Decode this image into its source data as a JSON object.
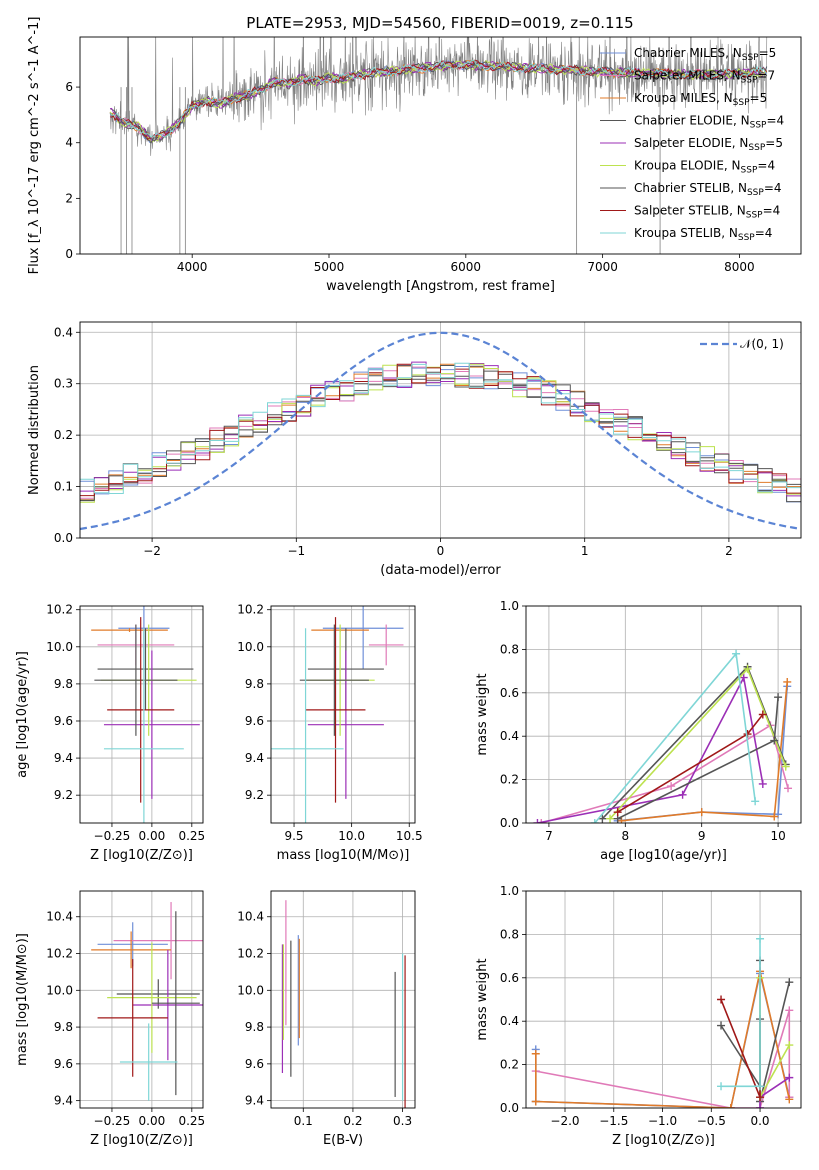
{
  "figure": {
    "title": "PLATE=2953, MJD=54560, FIBERID=0019, z=0.115"
  },
  "colors": {
    "Chabrier MILES": "#6f8fd8",
    "Salpeter MILES": "#e07ab8",
    "Kroupa MILES": "#e07b2a",
    "Chabrier ELODIE": "#555555",
    "Salpeter ELODIE": "#9b2fb6",
    "Kroupa ELODIE": "#bde24f",
    "Chabrier STELIB": "#555555",
    "Salpeter STELIB": "#a01818",
    "Kroupa STELIB": "#7fd6d6",
    "data": "#808080",
    "grid": "#b0b0b0",
    "normal": "#5b84d4"
  },
  "chart_data": [
    {
      "id": "spectrum",
      "type": "line",
      "title": "PLATE=2953, MJD=54560, FIBERID=0019, z=0.115",
      "xlabel": "wavelength [Angstrom, rest frame]",
      "ylabel": "Flux [f_λ 10^-17 erg cm^-2 s^-1 A^-1]",
      "xlim": [
        3180,
        8450
      ],
      "ylim": [
        0,
        7.8
      ],
      "xticks": [
        4000,
        5000,
        6000,
        7000,
        8000
      ],
      "yticks": [
        0,
        2,
        4,
        6
      ],
      "grid": false,
      "legend_position": "top-right",
      "legend": [
        {
          "text": "Chabrier MILES, N",
          "sub": "SSP",
          "tail": "=5"
        },
        {
          "text": "Salpeter MILES, N",
          "sub": "SSP",
          "tail": "=7"
        },
        {
          "text": "Kroupa MILES, N",
          "sub": "SSP",
          "tail": "=5"
        },
        {
          "text": "Chabrier ELODIE, N",
          "sub": "SSP",
          "tail": "=4"
        },
        {
          "text": "Salpeter ELODIE, N",
          "sub": "SSP",
          "tail": "=5"
        },
        {
          "text": "Kroupa ELODIE, N",
          "sub": "SSP",
          "tail": "=4"
        },
        {
          "text": "Chabrier STELIB, N",
          "sub": "SSP",
          "tail": "=4"
        },
        {
          "text": "Salpeter STELIB, N",
          "sub": "SSP",
          "tail": "=4"
        },
        {
          "text": "Kroupa STELIB, N",
          "sub": "SSP",
          "tail": "=4"
        }
      ],
      "model_continuum": {
        "x": [
          3400,
          3500,
          3600,
          3700,
          3800,
          3900,
          4000,
          4100,
          4200,
          4300,
          4400,
          4500,
          4600,
          4700,
          4800,
          4900,
          5000,
          5100,
          5200,
          5300,
          5400,
          5500,
          5600,
          5700,
          5800,
          5900,
          6000,
          6200,
          6400,
          6600,
          6800,
          7000,
          7200,
          7400,
          7600,
          7800,
          8000,
          8200
        ],
        "y": [
          5.1,
          4.7,
          4.6,
          4.1,
          4.3,
          4.7,
          5.3,
          5.5,
          5.4,
          5.6,
          5.7,
          5.9,
          6.2,
          6.1,
          6.3,
          6.2,
          6.35,
          6.3,
          6.4,
          6.5,
          6.55,
          6.6,
          6.65,
          6.7,
          6.75,
          6.8,
          6.8,
          6.75,
          6.7,
          6.65,
          6.6,
          6.55,
          6.5,
          6.5,
          6.45,
          6.45,
          6.5,
          6.55
        ]
      }
    },
    {
      "id": "residuals",
      "type": "line",
      "xlabel": "(data-model)/error",
      "ylabel": "Normed distribution",
      "xlim": [
        -2.5,
        2.5
      ],
      "ylim": [
        0,
        0.42
      ],
      "xticks": [
        -2,
        -1,
        0,
        1,
        2
      ],
      "yticks": [
        0.0,
        0.1,
        0.2,
        0.3,
        0.4
      ],
      "grid": true,
      "legend_position": "top-right",
      "normal_label": "𝒩(0, 1)",
      "normal": {
        "mu": 0,
        "sigma": 1
      }
    },
    {
      "id": "z-age",
      "type": "scatter",
      "xlabel": "Z [log10(Z/Z⊙)]",
      "ylabel": "age  [log10(age/yr)]",
      "xlim": [
        -0.45,
        0.32
      ],
      "ylim": [
        9.05,
        10.22
      ],
      "xticks": [
        -0.25,
        0.0,
        0.25
      ],
      "yticks": [
        9.2,
        9.4,
        9.6,
        9.8,
        10.0,
        10.2
      ],
      "grid": true,
      "points": [
        {
          "series": "Chabrier MILES",
          "x": -0.05,
          "y": 10.1,
          "xerr": 0.16,
          "yerr": 0.22
        },
        {
          "series": "Salpeter MILES",
          "x": -0.1,
          "y": 10.01,
          "xerr": 0.24,
          "yerr": 0.11
        },
        {
          "series": "Kroupa MILES",
          "x": -0.14,
          "y": 10.09,
          "xerr": 0.24,
          "yerr": 0.01
        },
        {
          "series": "Chabrier ELODIE",
          "x": -0.04,
          "y": 9.88,
          "xerr": 0.3,
          "yerr": 0.22
        },
        {
          "series": "Salpeter ELODIE",
          "x": 0.0,
          "y": 9.58,
          "xerr": 0.3,
          "yerr": 0.4
        },
        {
          "series": "Kroupa ELODIE",
          "x": -0.02,
          "y": 9.82,
          "xerr": 0.3,
          "yerr": 0.3
        },
        {
          "series": "Chabrier STELIB",
          "x": -0.1,
          "y": 9.82,
          "xerr": 0.26,
          "yerr": 0.3
        },
        {
          "series": "Salpeter STELIB",
          "x": -0.07,
          "y": 9.66,
          "xerr": 0.21,
          "yerr": 0.5
        },
        {
          "series": "Kroupa STELIB",
          "x": -0.05,
          "y": 9.45,
          "xerr": 0.25,
          "yerr": 0.65
        }
      ]
    },
    {
      "id": "mass-age",
      "type": "scatter",
      "xlabel": "mass [log10(M/M⊙)]",
      "ylabel": "",
      "xlim": [
        9.3,
        10.55
      ],
      "ylim": [
        9.05,
        10.22
      ],
      "xticks": [
        9.5,
        10.0,
        10.5
      ],
      "yticks": [
        9.2,
        9.4,
        9.6,
        9.8,
        10.0,
        10.2
      ],
      "grid": true,
      "points": [
        {
          "series": "Chabrier MILES",
          "x": 10.1,
          "y": 10.1,
          "xerr": 0.35,
          "yerr": 0.22
        },
        {
          "series": "Salpeter MILES",
          "x": 10.3,
          "y": 10.01,
          "xerr": 0.15,
          "yerr": 0.11
        },
        {
          "series": "Kroupa MILES",
          "x": 9.9,
          "y": 10.09,
          "xerr": 0.25,
          "yerr": 0.01
        },
        {
          "series": "Chabrier ELODIE",
          "x": 9.95,
          "y": 9.88,
          "xerr": 0.33,
          "yerr": 0.22
        },
        {
          "series": "Salpeter ELODIE",
          "x": 9.95,
          "y": 9.58,
          "xerr": 0.33,
          "yerr": 0.4
        },
        {
          "series": "Kroupa ELODIE",
          "x": 9.9,
          "y": 9.82,
          "xerr": 0.3,
          "yerr": 0.3
        },
        {
          "series": "Chabrier STELIB",
          "x": 9.85,
          "y": 9.82,
          "xerr": 0.3,
          "yerr": 0.3
        },
        {
          "series": "Salpeter STELIB",
          "x": 9.86,
          "y": 9.66,
          "xerr": 0.26,
          "yerr": 0.5
        },
        {
          "series": "Kroupa STELIB",
          "x": 9.6,
          "y": 9.45,
          "xerr": 0.33,
          "yerr": 0.65
        }
      ]
    },
    {
      "id": "age-weight",
      "type": "line",
      "xlabel": "age  [log10(age/yr)]",
      "ylabel": "mass weight",
      "xlim": [
        6.7,
        10.3
      ],
      "ylim": [
        0,
        1.0
      ],
      "xticks": [
        7,
        8,
        9,
        10
      ],
      "yticks": [
        0.0,
        0.2,
        0.4,
        0.6,
        0.8,
        1.0
      ],
      "grid": true,
      "series": [
        {
          "name": "Chabrier MILES",
          "x": [
            7.9,
            9.0,
            10.0,
            10.12
          ],
          "y": [
            0.01,
            0.05,
            0.04,
            0.63
          ]
        },
        {
          "name": "Salpeter MILES",
          "x": [
            6.9,
            8.6,
            9.9,
            10.13
          ],
          "y": [
            0.0,
            0.17,
            0.45,
            0.16
          ]
        },
        {
          "name": "Kroupa MILES",
          "x": [
            7.95,
            9.0,
            9.95,
            10.12
          ],
          "y": [
            0.01,
            0.05,
            0.03,
            0.65
          ]
        },
        {
          "name": "Chabrier ELODIE",
          "x": [
            7.7,
            9.6,
            10.1
          ],
          "y": [
            0.02,
            0.72,
            0.27
          ]
        },
        {
          "name": "Salpeter ELODIE",
          "x": [
            6.85,
            8.75,
            9.55,
            9.8
          ],
          "y": [
            0.0,
            0.13,
            0.67,
            0.18
          ]
        },
        {
          "name": "Kroupa ELODIE",
          "x": [
            7.8,
            9.6,
            10.1
          ],
          "y": [
            0.02,
            0.71,
            0.26
          ]
        },
        {
          "name": "Chabrier STELIB",
          "x": [
            7.9,
            9.95,
            10.0
          ],
          "y": [
            0.02,
            0.38,
            0.58
          ]
        },
        {
          "name": "Salpeter STELIB",
          "x": [
            7.9,
            9.6,
            9.8
          ],
          "y": [
            0.05,
            0.41,
            0.5
          ]
        },
        {
          "name": "Kroupa STELIB",
          "x": [
            7.6,
            9.45,
            9.7
          ],
          "y": [
            0.0,
            0.78,
            0.1
          ]
        }
      ]
    },
    {
      "id": "z-mass",
      "type": "scatter",
      "xlabel": "Z [log10(Z/Z⊙)]",
      "ylabel": "mass [log10(M/M⊙)]",
      "xlim": [
        -0.45,
        0.32
      ],
      "ylim": [
        9.36,
        10.54
      ],
      "xticks": [
        -0.25,
        0.0,
        0.25
      ],
      "yticks": [
        9.4,
        9.6,
        9.8,
        10.0,
        10.2,
        10.4
      ],
      "grid": true,
      "points": [
        {
          "series": "Chabrier MILES",
          "x": -0.12,
          "y": 10.25,
          "xerr": 0.22,
          "yerr": 0.12
        },
        {
          "series": "Salpeter MILES",
          "x": 0.12,
          "y": 10.27,
          "xerr": 0.36,
          "yerr": 0.21
        },
        {
          "series": "Kroupa MILES",
          "x": -0.13,
          "y": 10.22,
          "xerr": 0.25,
          "yerr": 0.1
        },
        {
          "series": "Chabrier ELODIE",
          "x": 0.04,
          "y": 9.98,
          "xerr": 0.26,
          "yerr": 0.08
        },
        {
          "series": "Salpeter ELODIE",
          "x": 0.1,
          "y": 9.92,
          "xerr": 0.22,
          "yerr": 0.3
        },
        {
          "series": "Kroupa ELODIE",
          "x": 0.0,
          "y": 9.96,
          "xerr": 0.28,
          "yerr": 0.3
        },
        {
          "series": "Chabrier STELIB",
          "x": 0.15,
          "y": 9.93,
          "xerr": 0.15,
          "yerr": 0.5
        },
        {
          "series": "Salpeter STELIB",
          "x": -0.12,
          "y": 9.85,
          "xerr": 0.22,
          "yerr": 0.32
        },
        {
          "series": "Kroupa STELIB",
          "x": -0.02,
          "y": 9.61,
          "xerr": 0.18,
          "yerr": 0.21
        }
      ]
    },
    {
      "id": "ebv-mass",
      "type": "scatter",
      "xlabel": "E(B-V)",
      "ylabel": "",
      "xlim": [
        0.035,
        0.325
      ],
      "ylim": [
        9.36,
        10.54
      ],
      "xticks": [
        0.1,
        0.2,
        0.3
      ],
      "yticks": [
        9.4,
        9.6,
        9.8,
        10.0,
        10.2,
        10.4
      ],
      "grid": true,
      "points": [
        {
          "series": "Chabrier MILES",
          "x": 0.09,
          "y": 10.0,
          "xerr": 0.0,
          "yerr": 0.3
        },
        {
          "series": "Salpeter MILES",
          "x": 0.065,
          "y": 10.15,
          "xerr": 0.0,
          "yerr": 0.34
        },
        {
          "series": "Kroupa MILES",
          "x": 0.092,
          "y": 10.01,
          "xerr": 0.0,
          "yerr": 0.27
        },
        {
          "series": "Chabrier ELODIE",
          "x": 0.285,
          "y": 9.76,
          "xerr": 0.0,
          "yerr": 0.34
        },
        {
          "series": "Salpeter ELODIE",
          "x": 0.058,
          "y": 9.9,
          "xerr": 0.0,
          "yerr": 0.35
        },
        {
          "series": "Kroupa ELODIE",
          "x": 0.06,
          "y": 9.99,
          "xerr": 0.0,
          "yerr": 0.26
        },
        {
          "series": "Chabrier STELIB",
          "x": 0.075,
          "y": 9.9,
          "xerr": 0.0,
          "yerr": 0.37
        },
        {
          "series": "Salpeter STELIB",
          "x": 0.305,
          "y": 9.77,
          "xerr": 0.0,
          "yerr": 0.42
        },
        {
          "series": "Kroupa STELIB",
          "x": 0.3,
          "y": 9.8,
          "xerr": 0.0,
          "yerr": 0.4
        }
      ]
    },
    {
      "id": "z-weight",
      "type": "line",
      "xlabel": "Z [log10(Z/Z⊙)]",
      "ylabel": "mass weight",
      "xlim": [
        -2.4,
        0.42
      ],
      "ylim": [
        0,
        1.0
      ],
      "xticks": [
        -2.0,
        -1.5,
        -1.0,
        -0.5,
        0.0
      ],
      "yticks": [
        0.0,
        0.2,
        0.4,
        0.6,
        0.8,
        1.0
      ],
      "grid": true,
      "series": [
        {
          "name": "Chabrier MILES",
          "x": [
            -2.3,
            -2.3,
            -0.3,
            0.0,
            0.3
          ],
          "y": [
            0.27,
            0.03,
            0.0,
            0.62,
            0.05
          ]
        },
        {
          "name": "Salpeter MILES",
          "x": [
            -2.3,
            -0.3,
            0.0,
            0.3,
            0.3
          ],
          "y": [
            0.17,
            0.0,
            0.0,
            0.45,
            0.05
          ]
        },
        {
          "name": "Kroupa MILES",
          "x": [
            -2.3,
            -2.3,
            -0.3,
            0.0,
            0.3
          ],
          "y": [
            0.25,
            0.03,
            0.0,
            0.63,
            0.04
          ]
        },
        {
          "name": "Chabrier ELODIE",
          "x": [
            0.0,
            0.0,
            0.3
          ],
          "y": [
            0.68,
            0.03,
            0.58
          ]
        },
        {
          "name": "Salpeter ELODIE",
          "x": [
            0.0,
            0.0,
            0.3
          ],
          "y": [
            0.0,
            0.05,
            0.14
          ]
        },
        {
          "name": "Kroupa ELODIE",
          "x": [
            0.0,
            0.0,
            0.3
          ],
          "y": [
            0.6,
            0.05,
            0.29
          ]
        },
        {
          "name": "Chabrier STELIB",
          "x": [
            -0.4,
            0.0,
            0.0
          ],
          "y": [
            0.38,
            0.1,
            0.41
          ]
        },
        {
          "name": "Salpeter STELIB",
          "x": [
            -0.4,
            0.0,
            0.0
          ],
          "y": [
            0.5,
            0.05,
            0.1
          ]
        },
        {
          "name": "Kroupa STELIB",
          "x": [
            -0.4,
            0.0,
            0.0
          ],
          "y": [
            0.1,
            0.1,
            0.78
          ]
        }
      ]
    }
  ]
}
